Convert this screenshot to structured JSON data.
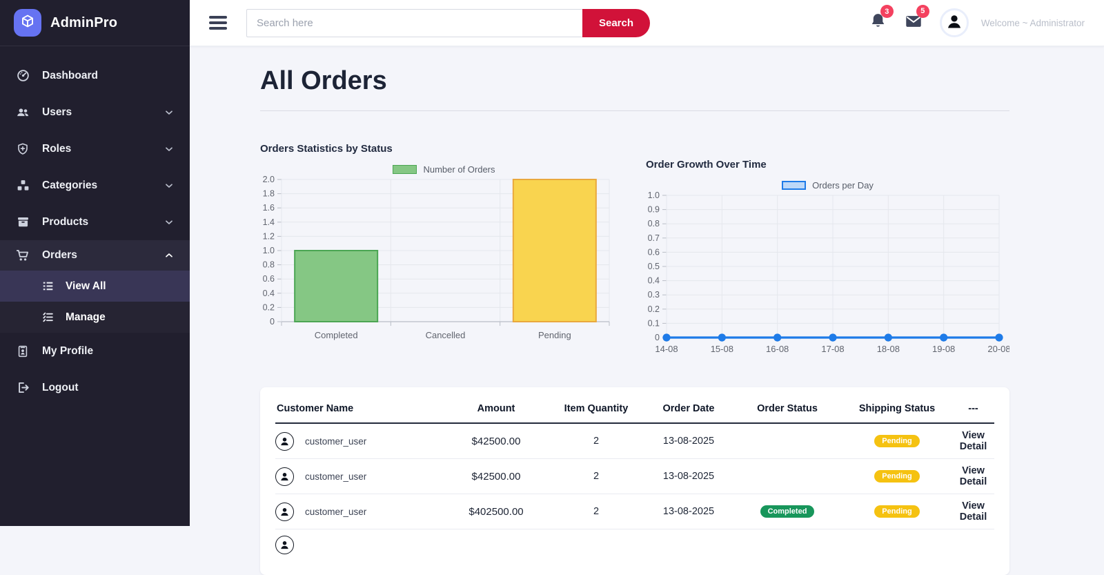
{
  "brand": {
    "name": "AdminPro"
  },
  "sidebar": {
    "items": [
      {
        "label": "Dashboard"
      },
      {
        "label": "Users"
      },
      {
        "label": "Roles"
      },
      {
        "label": "Categories"
      },
      {
        "label": "Products"
      },
      {
        "label": "Orders",
        "children": [
          {
            "label": "View All",
            "active": true
          },
          {
            "label": "Manage",
            "active": false
          }
        ]
      },
      {
        "label": "My Profile"
      },
      {
        "label": "Logout"
      }
    ]
  },
  "topbar": {
    "search_placeholder": "Search here",
    "search_button": "Search",
    "notifications_count": "3",
    "messages_count": "5",
    "welcome": "Welcome ~ Administrator"
  },
  "page": {
    "title": "All Orders"
  },
  "chart_data": [
    {
      "type": "bar",
      "title": "Orders Statistics by Status",
      "legend": "Number of Orders",
      "legend_position": "top",
      "legend_color": {
        "fill": "#85C784",
        "border": "#4BA553"
      },
      "categories": [
        "Completed",
        "Cancelled",
        "Pending"
      ],
      "values": [
        1,
        0,
        2
      ],
      "ylim": [
        0,
        2
      ],
      "ytick_step": 0.2,
      "grid": true,
      "bar_colors": [
        {
          "fill": "#85C784",
          "border": "#4BA553"
        },
        {
          "fill": "#85C784",
          "border": "#4BA553"
        },
        {
          "fill": "#F9D44F",
          "border": "#E9A83D"
        }
      ]
    },
    {
      "type": "line",
      "title": "Order Growth Over Time",
      "legend": "Orders per Day",
      "legend_position": "top",
      "legend_color": {
        "fill": "#BDD8F8",
        "border": "#1E7BE8"
      },
      "x": [
        "14-08",
        "15-08",
        "16-08",
        "17-08",
        "18-08",
        "19-08",
        "20-08"
      ],
      "values": [
        0,
        0,
        0,
        0,
        0,
        0,
        0
      ],
      "ylim": [
        0,
        1
      ],
      "ytick_step": 0.1,
      "grid": true,
      "line_color": "#1E7BE8"
    }
  ],
  "table": {
    "headers": [
      "Customer Name",
      "Amount",
      "Item Quantity",
      "Order Date",
      "Order Status",
      "Shipping Status",
      "---"
    ],
    "rows": [
      {
        "customer": "customer_user",
        "amount": "$42500.00",
        "quantity": "2",
        "order_date": "13-08-2025",
        "order_status": "",
        "shipping_status": "Pending",
        "action": "View Detail"
      },
      {
        "customer": "customer_user",
        "amount": "$42500.00",
        "quantity": "2",
        "order_date": "13-08-2025",
        "order_status": "",
        "shipping_status": "Pending",
        "action": "View Detail"
      },
      {
        "customer": "customer_user",
        "amount": "$402500.00",
        "quantity": "2",
        "order_date": "13-08-2025",
        "order_status": "Completed",
        "shipping_status": "Pending",
        "action": "View Detail"
      }
    ],
    "partial_next_row": true
  },
  "colors": {
    "accent": "#D11239",
    "notification_badge": "#F4415F",
    "sidebar_bg": "#211F2E",
    "logo_tile": "#6673F2",
    "status_badges": {
      "Pending": "#F5C211",
      "Completed": "#18965B"
    }
  }
}
